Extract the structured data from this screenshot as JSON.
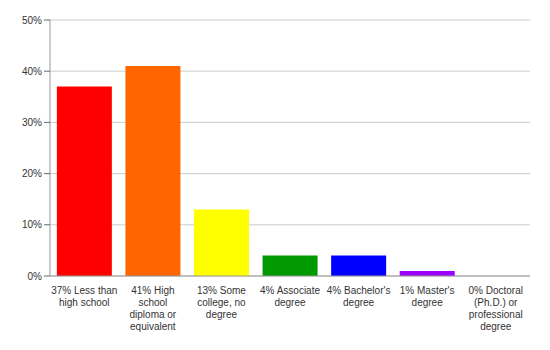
{
  "chart_data": {
    "type": "bar",
    "categories": [
      "37% Less than high school",
      "41% High school diploma or equivalent",
      "13% Some college, no degree",
      "4% Associate degree",
      "4% Bachelor's degree",
      "1% Master's degree",
      "0% Doctoral (Ph.D.) or professional degree"
    ],
    "values": [
      37,
      41,
      13,
      4,
      4,
      1,
      0
    ],
    "colors": [
      "#ff0000",
      "#ff6600",
      "#ffff00",
      "#009900",
      "#0000ff",
      "#9900ff",
      "#ff00ff"
    ],
    "ylim": [
      0,
      50
    ],
    "yticks": [
      {
        "value": 0,
        "label": "0%"
      },
      {
        "value": 10,
        "label": "10%"
      },
      {
        "value": 20,
        "label": "20%"
      },
      {
        "value": 30,
        "label": "30%"
      },
      {
        "value": 40,
        "label": "40%"
      },
      {
        "value": 50,
        "label": "50%"
      }
    ],
    "grid": true
  }
}
